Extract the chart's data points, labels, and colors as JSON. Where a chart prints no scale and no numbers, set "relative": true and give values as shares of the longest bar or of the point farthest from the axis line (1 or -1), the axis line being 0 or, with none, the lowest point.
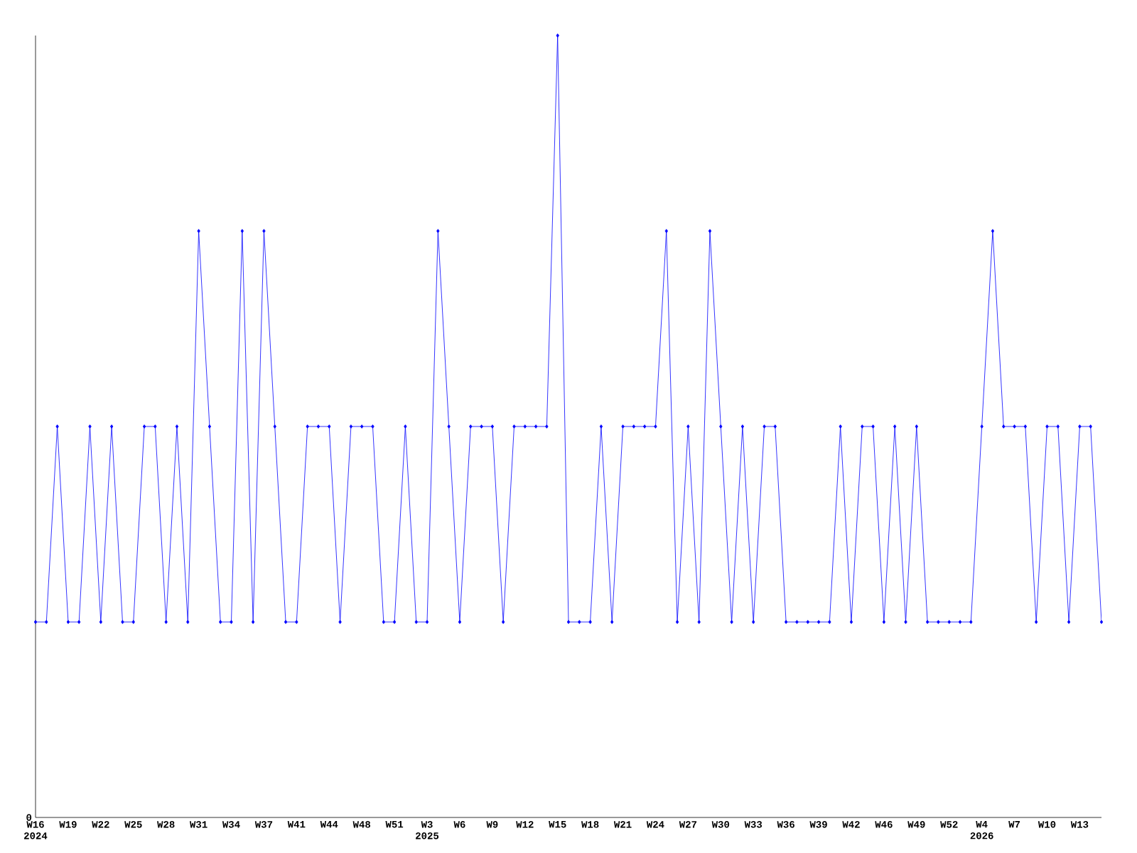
{
  "chart_data": {
    "type": "line",
    "relative": true,
    "color": "#0000ff",
    "marker": "diamond",
    "line_style": "solid",
    "annotations": [
      "0"
    ],
    "categories": [
      "W16 2024",
      null,
      null,
      "W19",
      null,
      null,
      "W22",
      null,
      null,
      "W25",
      null,
      null,
      "W28",
      null,
      null,
      "W31",
      null,
      null,
      "W34",
      null,
      null,
      "W37",
      null,
      null,
      "W41",
      null,
      null,
      "W44",
      null,
      null,
      "W48",
      null,
      null,
      "W51",
      null,
      null,
      "W3 2025",
      null,
      null,
      "W6",
      null,
      null,
      "W9",
      null,
      null,
      "W12",
      null,
      null,
      "W15",
      null,
      null,
      "W18",
      null,
      null,
      "W21",
      null,
      null,
      "W24",
      null,
      null,
      "W27",
      null,
      null,
      "W30",
      null,
      null,
      "W33",
      null,
      null,
      "W36",
      null,
      null,
      "W39",
      null,
      null,
      "W42",
      null,
      null,
      "W46",
      null,
      null,
      "W49",
      null,
      null,
      "W52",
      null,
      null,
      "W4 2026",
      null,
      null,
      "W7",
      null,
      null,
      "W10",
      null,
      null,
      "W13",
      null,
      null
    ],
    "values": [
      0.25,
      0.25,
      0.5,
      0.25,
      0.25,
      0.5,
      0.25,
      0.5,
      0.25,
      0.25,
      0.5,
      0.5,
      0.25,
      0.5,
      0.25,
      0.75,
      0.5,
      0.25,
      0.25,
      0.75,
      0.25,
      0.75,
      0.5,
      0.25,
      0.25,
      0.5,
      0.5,
      0.5,
      0.25,
      0.5,
      0.5,
      0.5,
      0.25,
      0.25,
      0.5,
      0.25,
      0.25,
      0.75,
      0.5,
      0.25,
      0.5,
      0.5,
      0.5,
      0.25,
      0.5,
      0.5,
      0.5,
      0.5,
      1,
      0.25,
      0.25,
      0.25,
      0.5,
      0.25,
      0.5,
      0.5,
      0.5,
      0.5,
      0.75,
      0.25,
      0.5,
      0.25,
      0.75,
      0.5,
      0.25,
      0.5,
      0.25,
      0.5,
      0.5,
      0.25,
      0.25,
      0.25,
      0.25,
      0.25,
      0.5,
      0.25,
      0.5,
      0.5,
      0.25,
      0.5,
      0.25,
      0.5,
      0.25,
      0.25,
      0.25,
      0.25,
      0.25,
      0.5,
      0.75,
      0.5,
      0.5,
      0.5,
      0.25,
      0.5,
      0.5,
      0.25,
      0.5,
      0.5,
      0.25
    ]
  }
}
